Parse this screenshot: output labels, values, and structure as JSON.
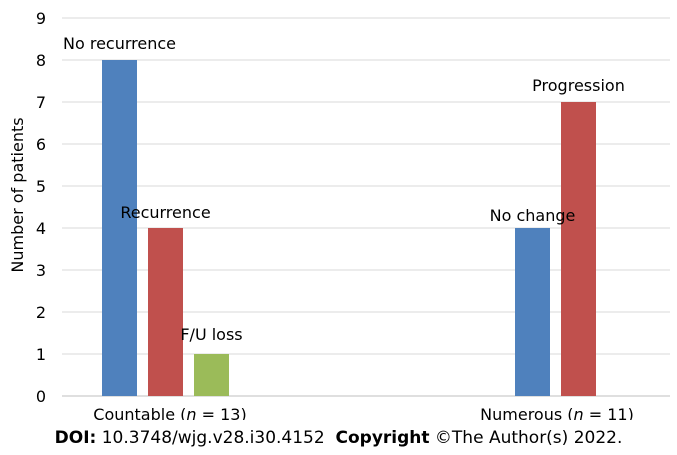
{
  "chart_data": {
    "type": "bar",
    "ylabel": "Number of patients",
    "ylim": [
      0,
      9
    ],
    "yticks": [
      "0",
      "1",
      "2",
      "3",
      "4",
      "5",
      "6",
      "7",
      "8",
      "9"
    ],
    "grid": true,
    "groups": [
      {
        "label_parts": [
          "Countable (",
          "n",
          " = 13)"
        ],
        "bars": [
          {
            "label": "No recurrence",
            "value": 8,
            "color": "#4f81bd"
          },
          {
            "label": "Recurrence",
            "value": 4,
            "color": "#c0504d"
          },
          {
            "label": "F/U loss",
            "value": 1,
            "color": "#9bbb59"
          }
        ]
      },
      {
        "label_parts": [
          "Numerous (",
          "n",
          " = 11)"
        ],
        "bars": [
          {
            "label": "No change",
            "value": 4,
            "color": "#4f81bd"
          },
          {
            "label": "Progression",
            "value": 7,
            "color": "#c0504d"
          }
        ]
      }
    ]
  },
  "footer": {
    "doi_label": "DOI:",
    "doi_value": "10.3748/wjg.v28.i30.4152",
    "copyright_label": "Copyright",
    "copyright_value": "©The Author(s) 2022."
  }
}
